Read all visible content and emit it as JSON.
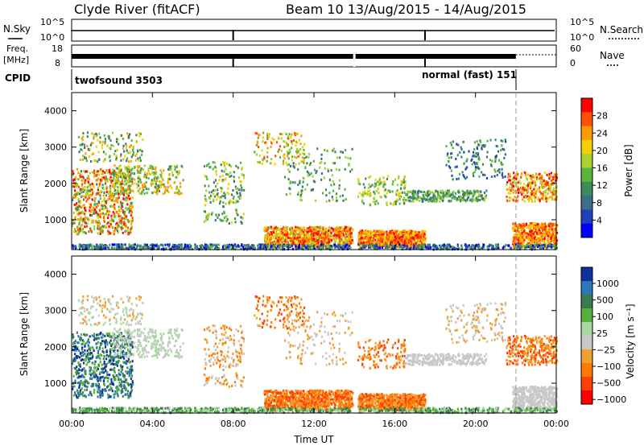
{
  "header": {
    "station": "Clyde River (fitACF)",
    "beam_date": "Beam 10  13/Aug/2015 - 14/Aug/2015"
  },
  "strips": {
    "nsky_label": "N.Sky",
    "nsky_ticks": [
      "10^5",
      "10^0"
    ],
    "nsearch_label": "N.Search",
    "nsearch_ticks": [
      "10^5",
      "10^0"
    ],
    "freq_label_1": "Freq.",
    "freq_label_2": "[MHz]",
    "freq_ticks": [
      "18",
      "8"
    ],
    "nave_label": "Nave",
    "nave_ticks": [
      "60",
      "0"
    ],
    "cpid_label": "CPID",
    "cpid_1": "twofsound 3503",
    "cpid_2": "normal (fast) 151"
  },
  "colors": {
    "power": [
      "#0000ff",
      "#2040c0",
      "#3a6e8a",
      "#3d8a5a",
      "#59b53c",
      "#a8d030",
      "#f4d000",
      "#ff9a00",
      "#ff5000",
      "#ff0000"
    ],
    "velocity": [
      "#1030a0",
      "#2a78b8",
      "#3a7a50",
      "#55b03c",
      "#a8d8a0",
      "#c8c8c8",
      "#f0a030",
      "#ff7a00",
      "#ff4000",
      "#ff0000"
    ]
  },
  "chart_data": [
    {
      "type": "heatmap",
      "name": "power",
      "ylabel": "Slant Range [km]",
      "yticks": [
        1000,
        2000,
        3000,
        4000
      ],
      "ylim": [
        180,
        4500
      ],
      "colorbar_label": "Power [dB]",
      "colorbar_ticks": [
        4,
        8,
        12,
        16,
        20,
        24,
        28
      ],
      "colorbar_range": [
        0,
        32
      ],
      "x_time_range_h": [
        0,
        24
      ]
    },
    {
      "type": "heatmap",
      "name": "velocity",
      "ylabel": "Slant Range [km]",
      "yticks": [
        1000,
        2000,
        3000,
        4000
      ],
      "ylim": [
        180,
        4500
      ],
      "colorbar_label": "Velocity [m s⁻¹]",
      "colorbar_ticks": [
        "1000",
        "500",
        "100",
        "25",
        "−25",
        "−100",
        "−500",
        "−1000"
      ],
      "xlabel": "Time UT",
      "xticks": [
        "00:00",
        "04:00",
        "08:00",
        "12:00",
        "16:00",
        "20:00",
        "00:00"
      ]
    }
  ]
}
